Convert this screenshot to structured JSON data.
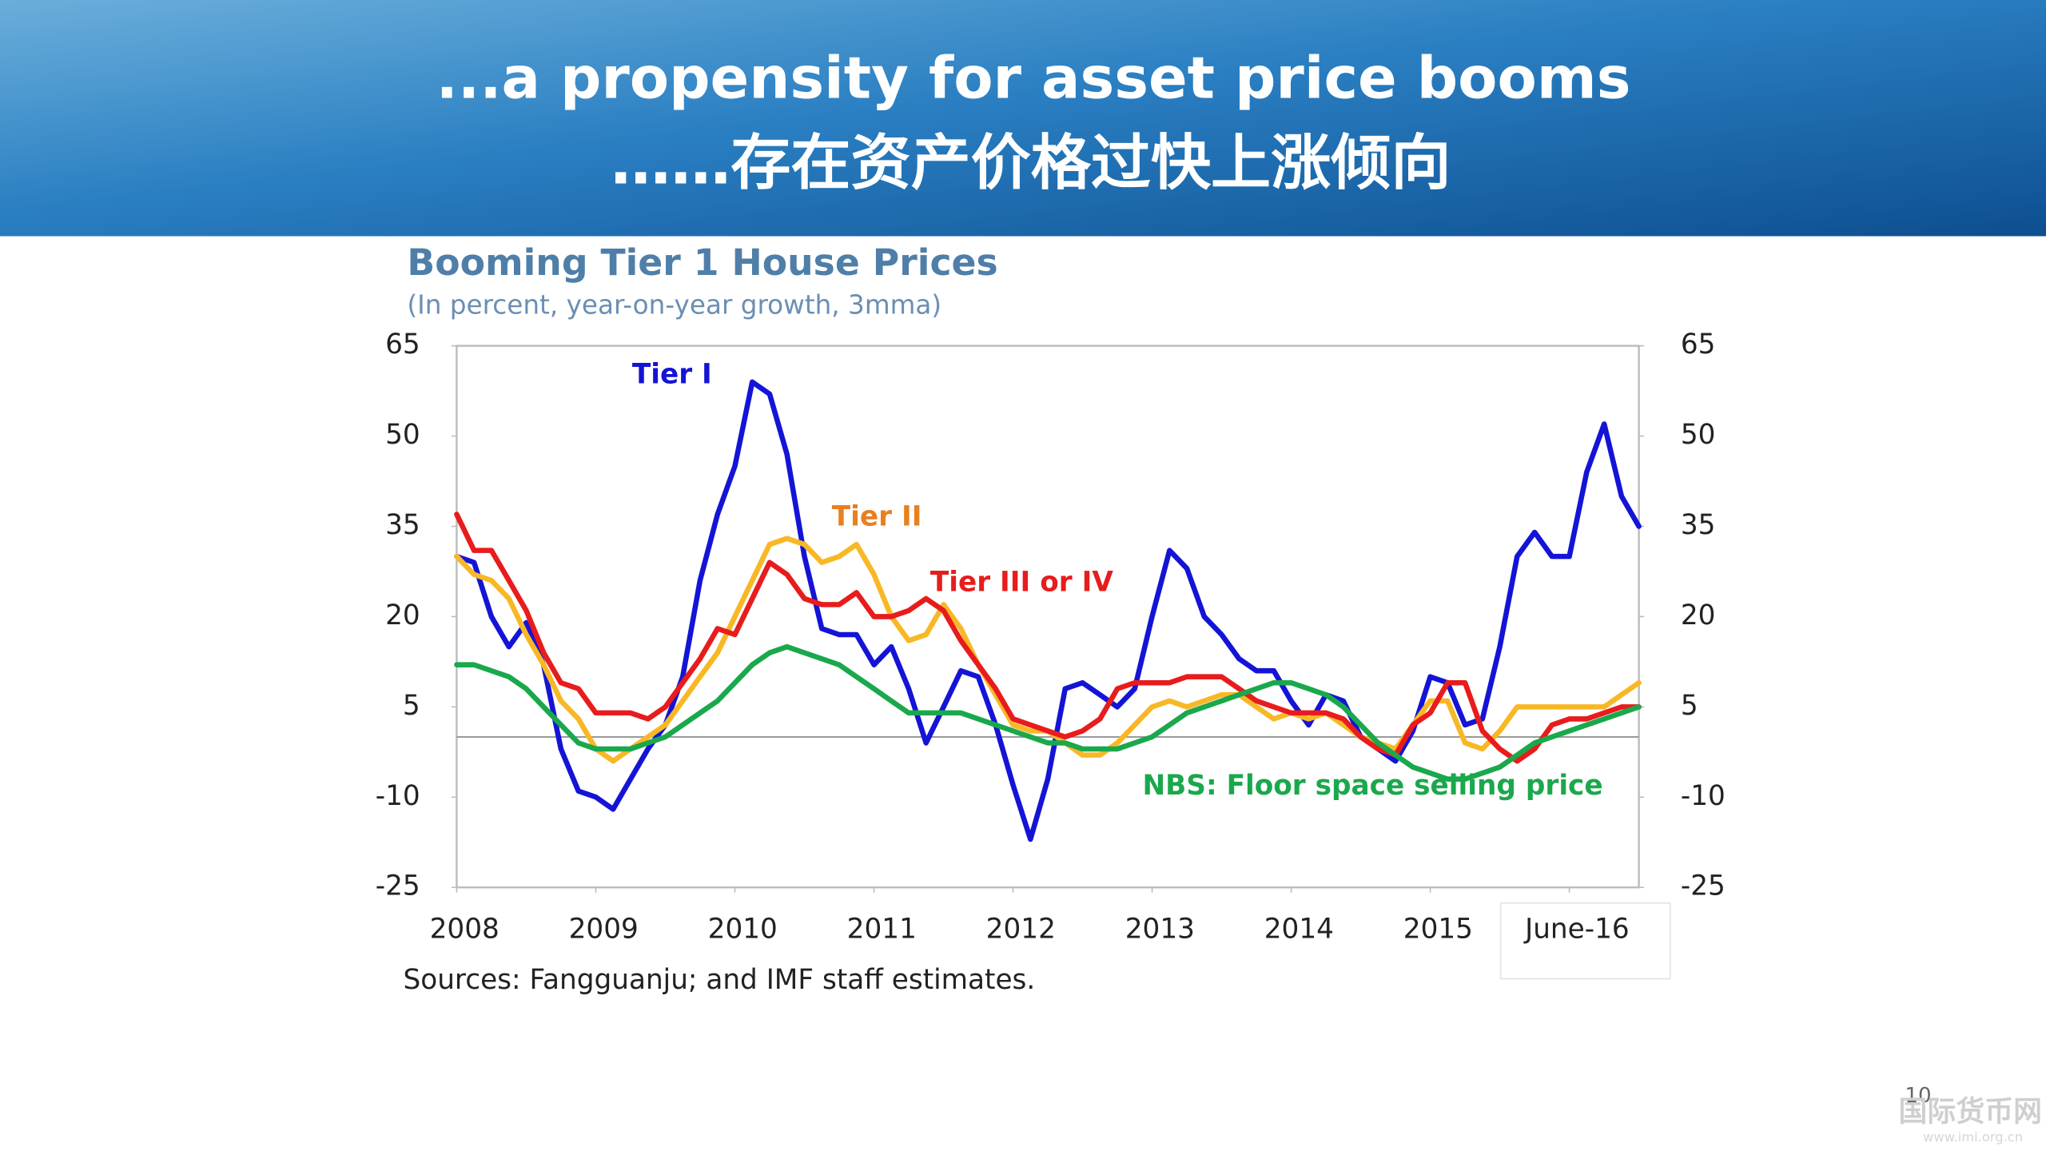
{
  "header": {
    "title": "...a propensity for asset price booms",
    "subtitle": "……存在资产价格过快上涨倾向"
  },
  "chart_data": {
    "type": "line",
    "title": "Booming Tier 1 House Prices",
    "subtitle": "(In percent, year-on-year growth, 3mma)",
    "source": "Sources: Fangguanju; and IMF staff estimates.",
    "x": [
      2008.0,
      2008.125,
      2008.25,
      2008.375,
      2008.5,
      2008.625,
      2008.75,
      2008.875,
      2009.0,
      2009.125,
      2009.25,
      2009.375,
      2009.5,
      2009.625,
      2009.75,
      2009.875,
      2010.0,
      2010.125,
      2010.25,
      2010.375,
      2010.5,
      2010.625,
      2010.75,
      2010.875,
      2011.0,
      2011.125,
      2011.25,
      2011.375,
      2011.5,
      2011.625,
      2011.75,
      2011.875,
      2012.0,
      2012.125,
      2012.25,
      2012.375,
      2012.5,
      2012.625,
      2012.75,
      2012.875,
      2013.0,
      2013.125,
      2013.25,
      2013.375,
      2013.5,
      2013.625,
      2013.75,
      2013.875,
      2014.0,
      2014.125,
      2014.25,
      2014.375,
      2014.5,
      2014.625,
      2014.75,
      2014.875,
      2015.0,
      2015.125,
      2015.25,
      2015.375,
      2015.5,
      2015.625,
      2015.75,
      2015.875,
      2016.0,
      2016.125,
      2016.25,
      2016.375,
      2016.5
    ],
    "xlim": [
      2008,
      2016.5
    ],
    "xticks": [
      {
        "value": 2008,
        "label": "2008"
      },
      {
        "value": 2009,
        "label": "2009"
      },
      {
        "value": 2010,
        "label": "2010"
      },
      {
        "value": 2011,
        "label": "2011"
      },
      {
        "value": 2012,
        "label": "2012"
      },
      {
        "value": 2013,
        "label": "2013"
      },
      {
        "value": 2014,
        "label": "2014"
      },
      {
        "value": 2015,
        "label": "2015"
      },
      {
        "value": 2016,
        "label": "June-16"
      }
    ],
    "ylim": [
      -25,
      65
    ],
    "yticks": [
      -25,
      -10,
      5,
      20,
      35,
      50,
      65
    ],
    "y2lim": [
      -25,
      65
    ],
    "y2ticks": [
      -25,
      -10,
      5,
      20,
      35,
      50,
      65
    ],
    "grid": false,
    "legend": false,
    "series": [
      {
        "name": "Tier I",
        "color": "#1414d6",
        "values": [
          30,
          29,
          20,
          15,
          19,
          12,
          -2,
          -9,
          -10,
          -12,
          -7,
          -2,
          2,
          10,
          26,
          37,
          45,
          59,
          57,
          47,
          30,
          18,
          17,
          17,
          12,
          15,
          8,
          -1,
          5,
          11,
          10,
          2,
          -8,
          -17,
          -7,
          8,
          9,
          7,
          5,
          8,
          20,
          31,
          28,
          20,
          17,
          13,
          11,
          11,
          6,
          2,
          7,
          6,
          0,
          -2,
          -4,
          1,
          10,
          9,
          2,
          3,
          15,
          30,
          34,
          30,
          30,
          44,
          52,
          40,
          35
        ]
      },
      {
        "name": "Tier II",
        "color": "#f8b826",
        "values": [
          30,
          27,
          26,
          23,
          17,
          12,
          6,
          3,
          -2,
          -4,
          -2,
          0,
          2,
          6,
          10,
          14,
          20,
          26,
          32,
          33,
          32,
          29,
          30,
          32,
          27,
          20,
          16,
          17,
          22,
          18,
          12,
          7,
          2,
          1,
          1,
          -1,
          -3,
          -3,
          -1,
          2,
          5,
          6,
          5,
          6,
          7,
          7,
          5,
          3,
          4,
          3,
          4,
          2,
          0,
          -1,
          -2,
          2,
          6,
          6,
          -1,
          -2,
          1,
          5,
          5,
          5,
          5,
          5,
          5,
          7,
          9
        ]
      },
      {
        "name": "Tier III or IV",
        "color": "#e81c1c",
        "values": [
          37,
          31,
          31,
          26,
          21,
          14,
          9,
          8,
          4,
          4,
          4,
          3,
          5,
          9,
          13,
          18,
          17,
          23,
          29,
          27,
          23,
          22,
          22,
          24,
          20,
          20,
          21,
          23,
          21,
          16,
          12,
          8,
          3,
          2,
          1,
          0,
          1,
          3,
          8,
          9,
          9,
          9,
          10,
          10,
          10,
          8,
          6,
          5,
          4,
          4,
          4,
          3,
          0,
          -2,
          -3,
          2,
          4,
          9,
          9,
          1,
          -2,
          -4,
          -2,
          2,
          3,
          3,
          4,
          5,
          5
        ]
      },
      {
        "name": "NBS: Floor space selling price",
        "color": "#1aa84c",
        "values": [
          12,
          12,
          11,
          10,
          8,
          5,
          2,
          -1,
          -2,
          -2,
          -2,
          -1,
          0,
          2,
          4,
          6,
          9,
          12,
          14,
          15,
          14,
          13,
          12,
          10,
          8,
          6,
          4,
          4,
          4,
          4,
          3,
          2,
          1,
          0,
          -1,
          -1,
          -2,
          -2,
          -2,
          -1,
          0,
          2,
          4,
          5,
          6,
          7,
          8,
          9,
          9,
          8,
          7,
          5,
          2,
          -1,
          -3,
          -5,
          -6,
          -7,
          -7,
          -6,
          -5,
          -3,
          -1,
          0,
          1,
          2,
          3,
          4,
          5
        ]
      }
    ],
    "annotations": [
      {
        "text": "Tier I",
        "color": "#1414d6"
      },
      {
        "text": "Tier II",
        "color": "#e8801f"
      },
      {
        "text": "Tier III or IV",
        "color": "#e81c1c"
      },
      {
        "text": "NBS: Floor space selling price",
        "color": "#1aa84c"
      }
    ]
  },
  "footer": {
    "page_number": "10",
    "watermark": "国际货币网",
    "watermark_url": "www.imi.org.cn"
  }
}
